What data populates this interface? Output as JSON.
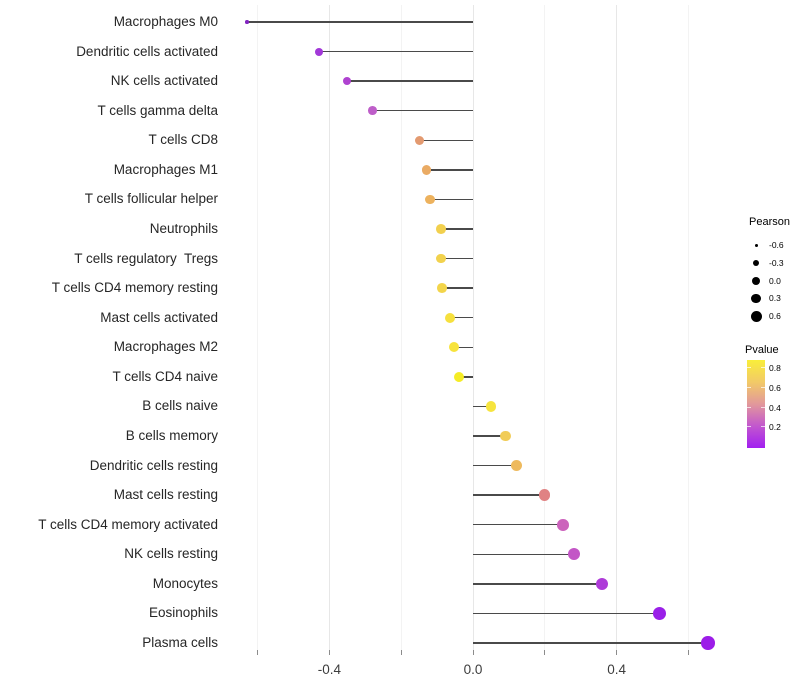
{
  "chart_data": {
    "type": "scatter",
    "subtype": "lollipop",
    "title": "",
    "xlabel": "",
    "ylabel": "",
    "xlim": [
      -0.7,
      0.7
    ],
    "grid": "vertical-only",
    "x_gridline_values": [
      -0.6,
      -0.4,
      -0.2,
      0.0,
      0.2,
      0.4,
      0.6
    ],
    "x_major_values": [
      -0.4,
      0.0,
      0.4
    ],
    "x_tick_labels": [
      "-0.4",
      "0.0",
      "0.4"
    ],
    "stick_color": "#4a4a4a",
    "points": [
      {
        "label": "Macrophages M0",
        "pearson": -0.63,
        "pvalue": 0.02,
        "color": "#8224C0",
        "size": 3.5
      },
      {
        "label": "Dendritic cells activated",
        "pearson": -0.43,
        "pvalue": 0.08,
        "color": "#A238D8",
        "size": 8
      },
      {
        "label": "NK cells activated",
        "pearson": -0.35,
        "pvalue": 0.12,
        "color": "#AF42D0",
        "size": 8.2
      },
      {
        "label": "T cells gamma delta",
        "pearson": -0.28,
        "pvalue": 0.18,
        "color": "#BE5EC9",
        "size": 8.6
      },
      {
        "label": "T cells CD8",
        "pearson": -0.15,
        "pvalue": 0.45,
        "color": "#E39A70",
        "size": 9.3
      },
      {
        "label": "Macrophages M1",
        "pearson": -0.13,
        "pvalue": 0.52,
        "color": "#EAAB64",
        "size": 9.4
      },
      {
        "label": "T cells follicular helper",
        "pearson": -0.12,
        "pvalue": 0.55,
        "color": "#EDB25E",
        "size": 9.4
      },
      {
        "label": "Neutrophils",
        "pearson": -0.09,
        "pvalue": 0.68,
        "color": "#F2D04E",
        "size": 9.8
      },
      {
        "label": "T cells regulatory  Tregs",
        "pearson": -0.09,
        "pvalue": 0.68,
        "color": "#F2D24D",
        "size": 9.8
      },
      {
        "label": "T cells CD4 memory resting",
        "pearson": -0.087,
        "pvalue": 0.69,
        "color": "#F3D54B",
        "size": 9.8
      },
      {
        "label": "Mast cells activated",
        "pearson": -0.065,
        "pvalue": 0.76,
        "color": "#F6E03E",
        "size": 10
      },
      {
        "label": "Macrophages M2",
        "pearson": -0.053,
        "pvalue": 0.78,
        "color": "#F7E33C",
        "size": 10
      },
      {
        "label": "T cells CD4 naive",
        "pearson": -0.04,
        "pvalue": 0.85,
        "color": "#F5EC25",
        "size": 10.2
      },
      {
        "label": "B cells naive",
        "pearson": 0.05,
        "pvalue": 0.77,
        "color": "#F6E43E",
        "size": 10.5
      },
      {
        "label": "B cells memory",
        "pearson": 0.09,
        "pvalue": 0.62,
        "color": "#F1CC57",
        "size": 10.8
      },
      {
        "label": "Dendritic cells resting",
        "pearson": 0.12,
        "pvalue": 0.55,
        "color": "#EEBA5E",
        "size": 11
      },
      {
        "label": "Mast cells resting",
        "pearson": 0.2,
        "pvalue": 0.38,
        "color": "#E08283",
        "size": 11.3
      },
      {
        "label": "T cells CD4 memory activated",
        "pearson": 0.25,
        "pvalue": 0.28,
        "color": "#CC63BC",
        "size": 11.7
      },
      {
        "label": "NK cells resting",
        "pearson": 0.28,
        "pvalue": 0.24,
        "color": "#C356C6",
        "size": 12
      },
      {
        "label": "Monocytes",
        "pearson": 0.36,
        "pvalue": 0.15,
        "color": "#AE3BD8",
        "size": 12.4
      },
      {
        "label": "Eosinophils",
        "pearson": 0.52,
        "pvalue": 0.06,
        "color": "#9A20E8",
        "size": 13
      },
      {
        "label": "Plasma cells",
        "pearson": 0.655,
        "pvalue": 0.05,
        "color": "#9C1DE8",
        "size": 13.4
      }
    ],
    "legend_size": {
      "title": "Pearson",
      "labels": [
        "-0.6",
        "-0.3",
        "0.0",
        "0.3",
        "0.6"
      ],
      "diameters": [
        3,
        6,
        8,
        9.5,
        11
      ],
      "dot_color": "#000000"
    },
    "legend_color": {
      "title": "Pvalue",
      "labels": [
        "0.8",
        "0.6",
        "0.4",
        "0.2"
      ],
      "label_offsets": [
        7,
        27,
        47,
        66
      ],
      "gradient_bottom_to_top": [
        "#A21FF0",
        "#C257CE",
        "#E2989B",
        "#F2CA67",
        "#F9EE3A"
      ]
    }
  }
}
